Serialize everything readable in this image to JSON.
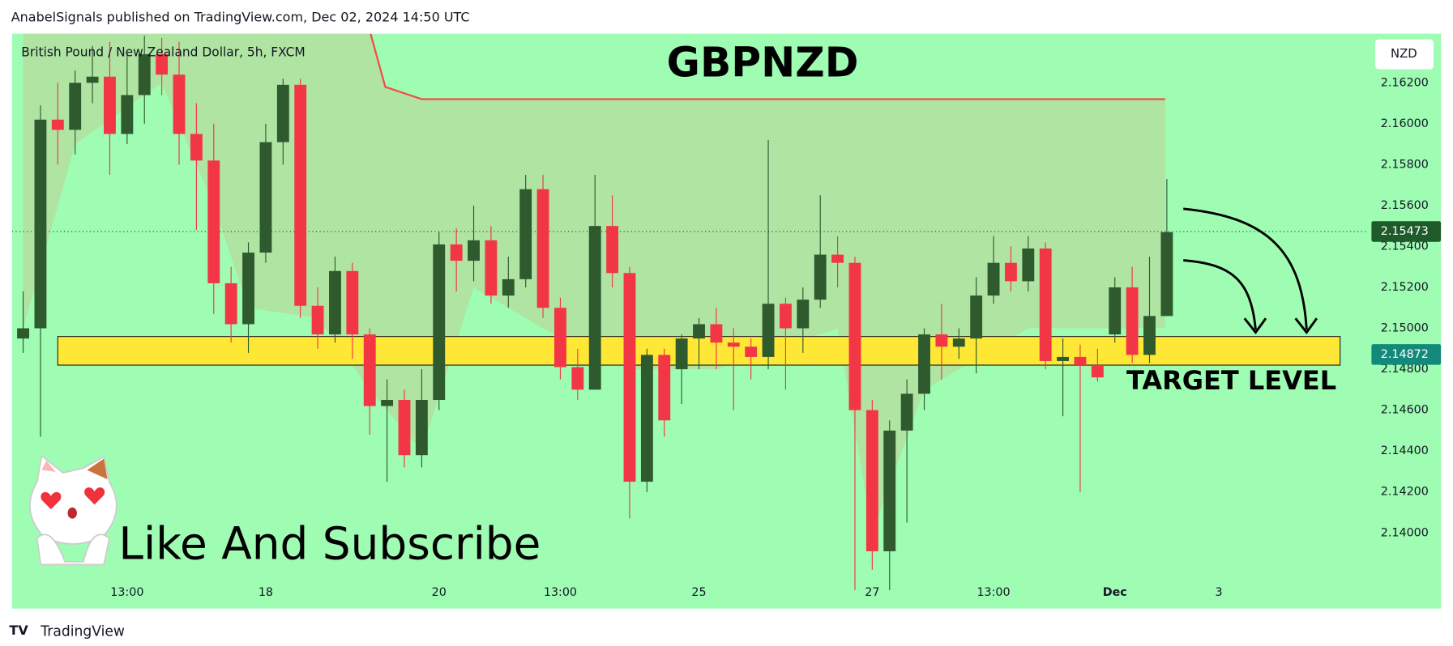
{
  "header": {
    "text": "AnabelSignals published on TradingView.com, Dec 02, 2024 14:50 UTC"
  },
  "footer": {
    "brand": "TradingView"
  },
  "chart_data": {
    "type": "candlestick",
    "title": "GBPNZD",
    "legend": "British Pound / New Zealand Dollar, 5h, FXCM",
    "currency": "NZD",
    "up_color": "#2f5a2e",
    "down_color": "#f23645",
    "background": "#9efcb3",
    "open": [
      2.1495,
      2.15,
      2.1602,
      2.1597,
      2.162,
      2.1623,
      2.1595,
      2.1614,
      2.1634,
      2.1624,
      2.1595,
      2.1582,
      2.1522,
      2.1502,
      2.1537,
      2.1591,
      2.1619,
      2.1511,
      2.1497,
      2.1528,
      2.1497,
      2.1462,
      2.1465,
      2.1438,
      2.1465,
      2.1541,
      2.1533,
      2.1543,
      2.1516,
      2.1524,
      2.1568,
      2.151,
      2.1481,
      2.147,
      2.155,
      2.1527,
      2.1425,
      2.1487,
      2.148,
      2.1495,
      2.1502,
      2.1493,
      2.1491,
      2.1486,
      2.1512,
      2.15,
      2.1514,
      2.1536,
      2.1532,
      2.146,
      2.1391,
      2.145,
      2.1468,
      2.1497,
      2.1491,
      2.1495,
      2.1516,
      2.1532,
      2.1523,
      2.1539,
      2.1484,
      2.1486,
      2.1482,
      2.1497,
      2.152,
      2.1487,
      2.1506
    ],
    "high": [
      2.1518,
      2.1609,
      2.162,
      2.1626,
      2.1638,
      2.164,
      2.1635,
      2.1643,
      2.1642,
      2.164,
      2.161,
      2.16,
      2.153,
      2.1542,
      2.16,
      2.1622,
      2.1622,
      2.152,
      2.1535,
      2.1532,
      2.15,
      2.1475,
      2.147,
      2.148,
      2.1547,
      2.1549,
      2.156,
      2.155,
      2.1535,
      2.1575,
      2.1575,
      2.1515,
      2.149,
      2.1575,
      2.1565,
      2.153,
      2.149,
      2.149,
      2.1497,
      2.1505,
      2.151,
      2.15,
      2.1495,
      2.1592,
      2.1515,
      2.152,
      2.1565,
      2.1545,
      2.1535,
      2.1465,
      2.1455,
      2.1475,
      2.15,
      2.1512,
      2.15,
      2.1525,
      2.1545,
      2.154,
      2.1545,
      2.1542,
      2.1495,
      2.1492,
      2.149,
      2.1525,
      2.153,
      2.1535,
      2.1573
    ],
    "low": [
      2.1488,
      2.1447,
      2.158,
      2.1585,
      2.161,
      2.1575,
      2.159,
      2.16,
      2.1614,
      2.158,
      2.1548,
      2.1507,
      2.1493,
      2.1488,
      2.1532,
      2.158,
      2.1505,
      2.149,
      2.1493,
      2.1485,
      2.1448,
      2.1425,
      2.1432,
      2.1432,
      2.146,
      2.1518,
      2.1523,
      2.1512,
      2.151,
      2.152,
      2.1505,
      2.1475,
      2.1465,
      2.147,
      2.152,
      2.1407,
      2.142,
      2.1447,
      2.1463,
      2.148,
      2.148,
      2.146,
      2.1475,
      2.148,
      2.147,
      2.1488,
      2.151,
      2.152,
      2.1372,
      2.1382,
      2.1372,
      2.1405,
      2.146,
      2.1475,
      2.1485,
      2.1478,
      2.1512,
      2.1518,
      2.1518,
      2.148,
      2.1457,
      2.142,
      2.1474,
      2.1493,
      2.1483,
      2.1483,
      2.1506
    ],
    "close": [
      2.15,
      2.1602,
      2.1597,
      2.162,
      2.1623,
      2.1595,
      2.1614,
      2.1634,
      2.1624,
      2.1595,
      2.1582,
      2.1522,
      2.1502,
      2.1537,
      2.1591,
      2.1619,
      2.1511,
      2.1497,
      2.1528,
      2.1497,
      2.1462,
      2.1465,
      2.1438,
      2.1465,
      2.1541,
      2.1533,
      2.1543,
      2.1516,
      2.1524,
      2.1568,
      2.151,
      2.1481,
      2.147,
      2.155,
      2.1527,
      2.1425,
      2.1487,
      2.1455,
      2.1495,
      2.1502,
      2.1493,
      2.1491,
      2.1486,
      2.1512,
      2.15,
      2.1514,
      2.1536,
      2.1532,
      2.146,
      2.1391,
      2.145,
      2.1468,
      2.1497,
      2.1491,
      2.1495,
      2.1516,
      2.1532,
      2.1523,
      2.1539,
      2.1484,
      2.1486,
      2.1482,
      2.1476,
      2.152,
      2.1487,
      2.1506,
      2.1547
    ],
    "xlim": [
      -0.64,
      77.54
    ],
    "xticks": [
      {
        "value": 6,
        "label": "13:00"
      },
      {
        "value": 14,
        "label": "18"
      },
      {
        "value": 24,
        "label": "20"
      },
      {
        "value": 31,
        "label": "13:00"
      },
      {
        "value": 39,
        "label": "25"
      },
      {
        "value": 49,
        "label": "27"
      },
      {
        "value": 56,
        "label": "13:00"
      },
      {
        "value": 63,
        "label": "Dec"
      },
      {
        "value": 69,
        "label": "3"
      }
    ],
    "ylim": [
      2.1363,
      2.1644
    ],
    "yticks": [
      {
        "value": 2.14,
        "label": "2.14000"
      },
      {
        "value": 2.142,
        "label": "2.14200"
      },
      {
        "value": 2.144,
        "label": "2.14400"
      },
      {
        "value": 2.146,
        "label": "2.14600"
      },
      {
        "value": 2.148,
        "label": "2.14800"
      },
      {
        "value": 2.15,
        "label": "2.15000"
      },
      {
        "value": 2.152,
        "label": "2.15200"
      },
      {
        "value": 2.154,
        "label": "2.15400"
      },
      {
        "value": 2.156,
        "label": "2.15600"
      },
      {
        "value": 2.158,
        "label": "2.15800"
      },
      {
        "value": 2.16,
        "label": "2.16000"
      },
      {
        "value": 2.162,
        "label": "2.16200"
      }
    ],
    "last_price": {
      "value": 2.15473,
      "color": "#1f5a2a"
    },
    "target_price": {
      "value": 2.14872,
      "color": "#13897a"
    },
    "red_line": {
      "color": "#f0504a",
      "x": [
        20.05,
        20.9,
        23.0,
        65.9
      ],
      "values": [
        2.1644,
        2.1618,
        2.1612,
        2.1612
      ]
    },
    "cloud": {
      "color": "#b2dfa0",
      "x": [
        0,
        3,
        8,
        11,
        13,
        17,
        20,
        23,
        26,
        30,
        35,
        40,
        47,
        49,
        52,
        58,
        65.9
      ],
      "lower": [
        2.15,
        2.159,
        2.162,
        2.156,
        2.151,
        2.1505,
        2.147,
        2.144,
        2.152,
        2.15,
        2.148,
        2.148,
        2.15,
        2.14,
        2.147,
        2.15,
        2.15
      ]
    },
    "target_zone": {
      "label": "TARGET LEVEL",
      "color": "#ffe835",
      "low": 2.1482,
      "high": 2.1496,
      "x": [
        2.0,
        76.0
      ]
    },
    "annotation": "Like And Subscribe"
  }
}
